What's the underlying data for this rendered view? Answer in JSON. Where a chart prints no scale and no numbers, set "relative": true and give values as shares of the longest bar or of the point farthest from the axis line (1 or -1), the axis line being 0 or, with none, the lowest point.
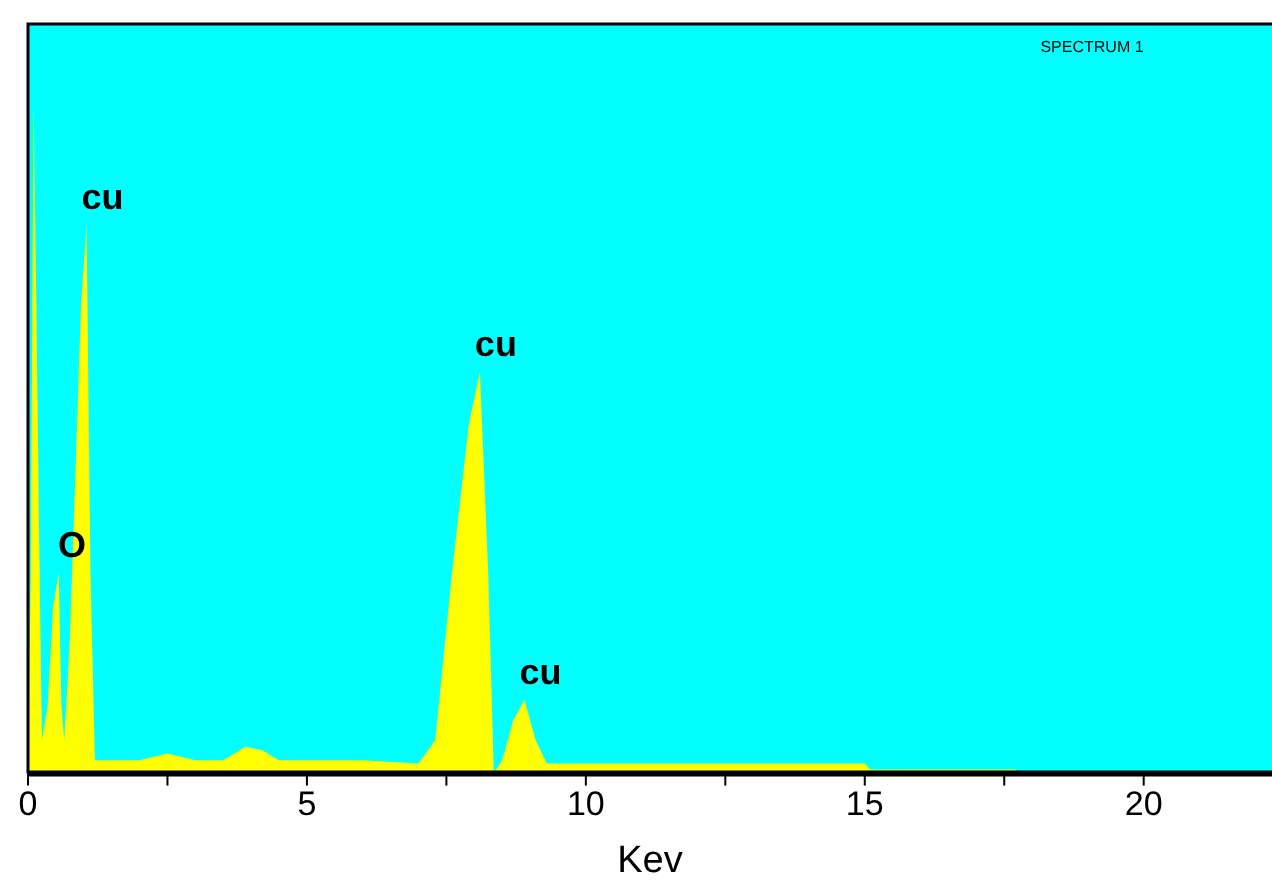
{
  "chart_data": {
    "type": "area",
    "xlabel": "Kev",
    "relative": true,
    "xlim": [
      0,
      22.3
    ],
    "xticks": [
      0,
      {
        "value": 2.5,
        "label": null
      },
      5,
      {
        "value": 7.5,
        "label": null
      },
      10,
      {
        "value": 12.5,
        "label": null
      },
      15,
      {
        "value": 17.5,
        "label": null
      },
      20
    ],
    "grid": false,
    "legend": false,
    "marker": "none",
    "series": [
      {
        "color": "#ffff00",
        "x": [
          0,
          0.05,
          0.1,
          0.15,
          0.2,
          0.25,
          0.35,
          0.45,
          0.55,
          0.6,
          0.65,
          0.75,
          0.85,
          0.95,
          1.05,
          1.12,
          1.2,
          2,
          2.5,
          3,
          3.5,
          3.9,
          4.2,
          4.5,
          6,
          7,
          7.3,
          7.6,
          7.9,
          8.1,
          8.25,
          8.35,
          8.5,
          8.7,
          8.9,
          9.1,
          9.3,
          15,
          15.1,
          17.7,
          17.8
        ],
        "values": [
          0,
          0.3,
          1,
          0.7,
          0.35,
          0.05,
          0.1,
          0.25,
          0.3,
          0.1,
          0.05,
          0.2,
          0.45,
          0.7,
          0.82,
          0.3,
          0.02,
          0.02,
          0.03,
          0.02,
          0.02,
          0.04,
          0.035,
          0.02,
          0.02,
          0.015,
          0.05,
          0.3,
          0.52,
          0.6,
          0.3,
          0,
          0.02,
          0.08,
          0.11,
          0.05,
          0.015,
          0.015,
          0.006,
          0.006,
          0
        ]
      }
    ],
    "annotations": [
      "SPECTRUM 1",
      {
        "text": "cu",
        "x": 1.05,
        "y": 0.82
      },
      {
        "text": "O",
        "x": 0.5,
        "y": 0.3
      },
      {
        "text": "cu",
        "x": 8.1,
        "y": 0.6
      },
      {
        "text": "cu",
        "x": 8.9,
        "y": 0.11
      }
    ]
  }
}
